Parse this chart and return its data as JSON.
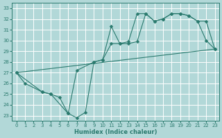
{
  "xlabel": "Humidex (Indice chaleur)",
  "bg_color": "#b2d8d8",
  "grid_color": "#ffffff",
  "line_color": "#2a7a6e",
  "xlim": [
    -0.5,
    23.5
  ],
  "ylim": [
    22.5,
    33.5
  ],
  "xticks": [
    0,
    1,
    2,
    3,
    4,
    5,
    6,
    7,
    8,
    9,
    10,
    11,
    12,
    13,
    14,
    15,
    16,
    17,
    18,
    19,
    20,
    21,
    22,
    23
  ],
  "yticks": [
    23,
    24,
    25,
    26,
    27,
    28,
    29,
    30,
    31,
    32,
    33
  ],
  "series1_x": [
    0,
    1,
    3,
    4,
    5,
    6,
    7,
    8,
    9,
    10,
    11,
    12,
    13,
    14,
    15,
    16,
    17,
    18,
    19,
    20,
    21,
    22,
    23
  ],
  "series1_y": [
    27.0,
    26.0,
    25.2,
    25.0,
    24.7,
    23.2,
    22.8,
    23.3,
    28.0,
    28.2,
    31.3,
    29.7,
    29.7,
    29.9,
    32.5,
    31.8,
    32.0,
    32.5,
    32.5,
    32.3,
    31.8,
    30.0,
    29.2
  ],
  "series2_x": [
    0,
    3,
    4,
    6,
    7,
    9,
    10,
    11,
    12,
    13,
    14,
    15,
    16,
    17,
    18,
    19,
    20,
    21,
    22,
    23
  ],
  "series2_y": [
    27.0,
    25.2,
    25.0,
    23.2,
    27.2,
    28.0,
    28.2,
    29.7,
    29.7,
    29.9,
    32.5,
    32.5,
    31.8,
    32.0,
    32.5,
    32.5,
    32.3,
    31.8,
    31.8,
    29.2
  ],
  "series3_x": [
    0,
    23
  ],
  "series3_y": [
    27.0,
    29.2
  ]
}
